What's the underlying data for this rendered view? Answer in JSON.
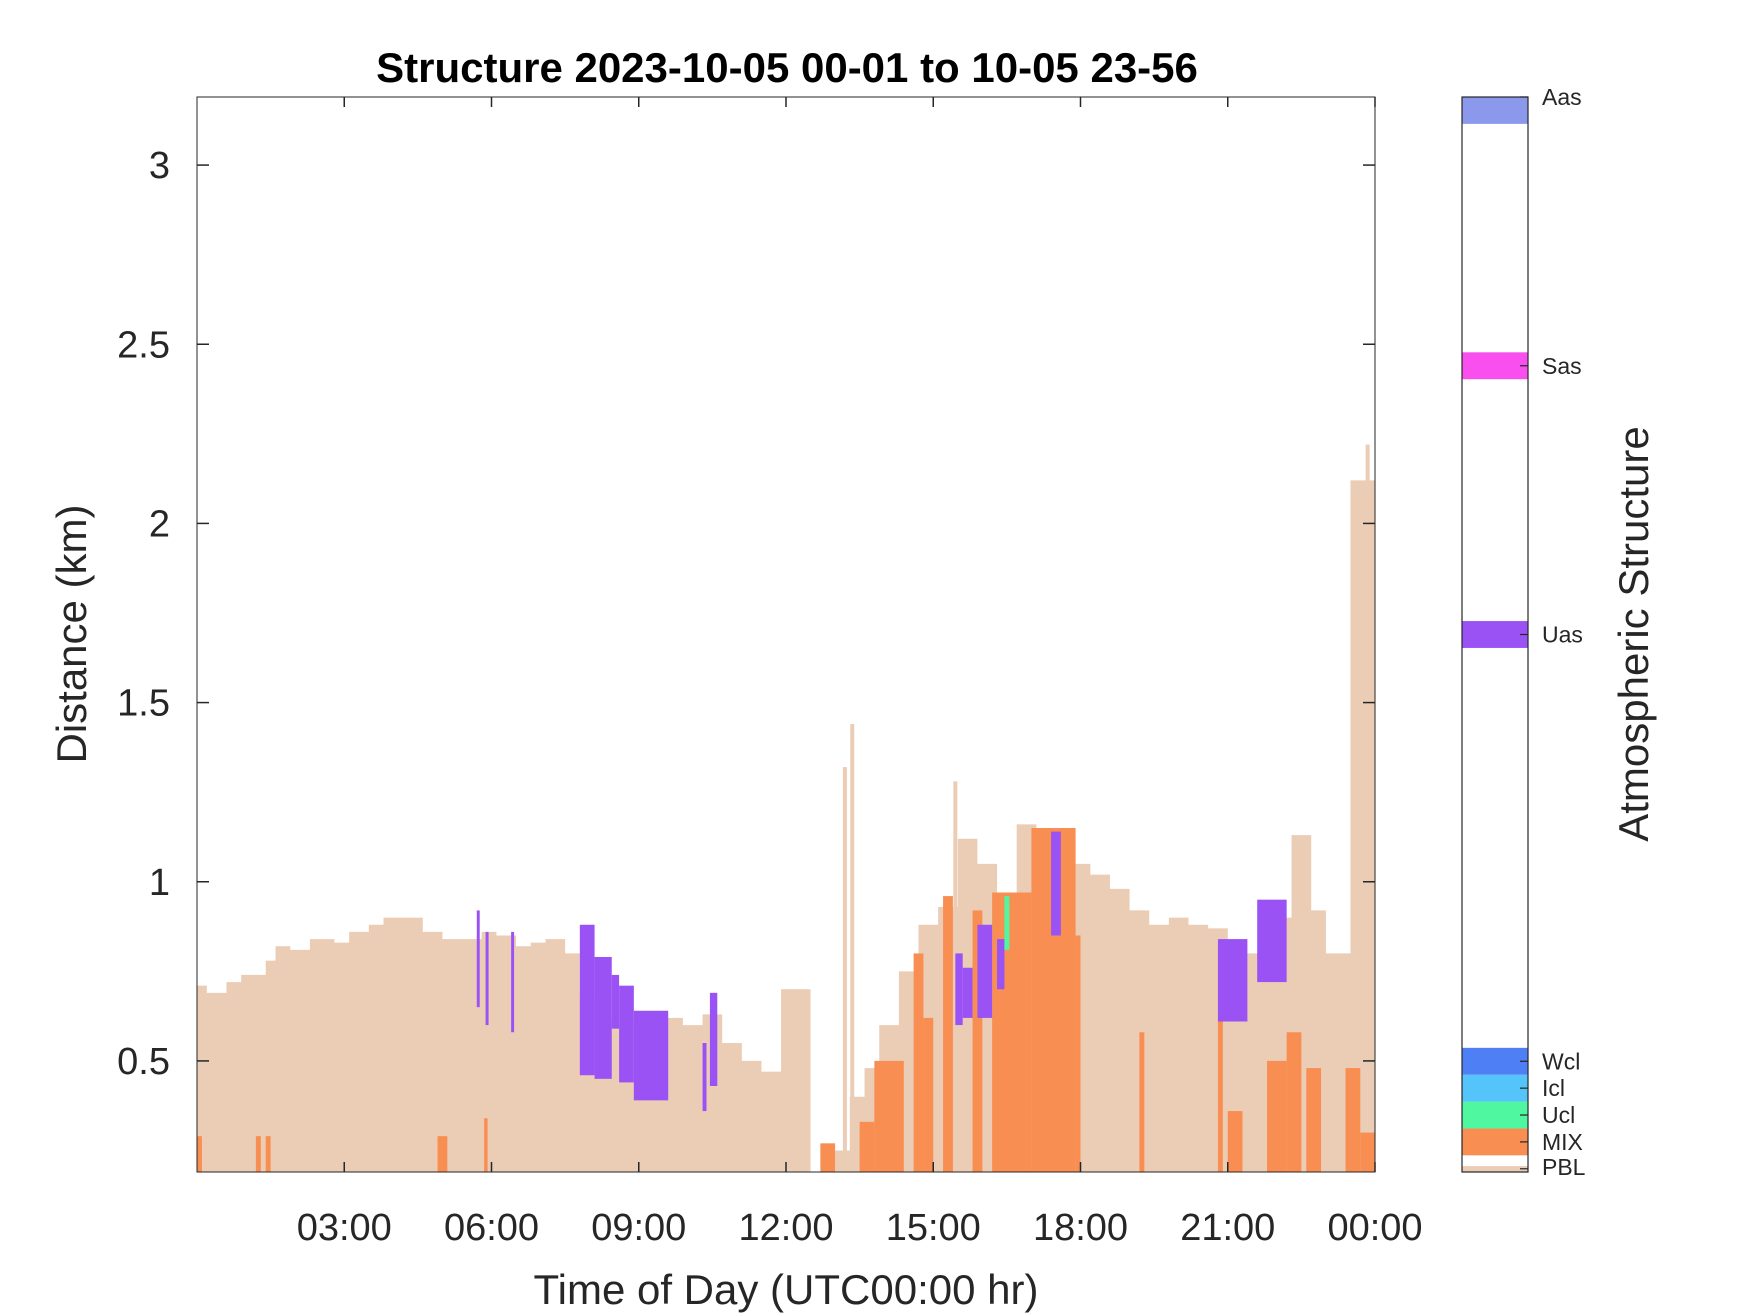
{
  "chart_data": {
    "type": "heatmap",
    "title": "Structure 2023-10-05 00-01 to 10-05 23-56",
    "xlabel": "Time of Day (UTC00:00 hr)",
    "ylabel": "Distance (km)",
    "xlim": [
      0,
      24
    ],
    "ylim": [
      0.19,
      3.19
    ],
    "x_ticks": [
      {
        "value": 3,
        "label": "03:00"
      },
      {
        "value": 6,
        "label": "06:00"
      },
      {
        "value": 9,
        "label": "09:00"
      },
      {
        "value": 12,
        "label": "12:00"
      },
      {
        "value": 15,
        "label": "15:00"
      },
      {
        "value": 18,
        "label": "18:00"
      },
      {
        "value": 21,
        "label": "21:00"
      },
      {
        "value": 24,
        "label": "00:00"
      }
    ],
    "y_ticks": [
      {
        "value": 0.5,
        "label": "0.5"
      },
      {
        "value": 1,
        "label": "1"
      },
      {
        "value": 1.5,
        "label": "1.5"
      },
      {
        "value": 2,
        "label": "2"
      },
      {
        "value": 2.5,
        "label": "2.5"
      },
      {
        "value": 3,
        "label": "3"
      }
    ],
    "colorbar": {
      "label": "Atmospheric Structure",
      "categories": [
        {
          "code": "PBL",
          "color": "#EBCCB5"
        },
        {
          "code": "MIX",
          "color": "#F88E52"
        },
        {
          "code": "Ucl",
          "color": "#4FF7A1"
        },
        {
          "code": "Icl",
          "color": "#55C4FA"
        },
        {
          "code": "Wcl",
          "color": "#4F7FF5"
        },
        {
          "code": "Uas",
          "color": "#9B52F5"
        },
        {
          "code": "Sas",
          "color": "#F84FEE"
        },
        {
          "code": "Aas",
          "color": "#8C98EB"
        }
      ]
    },
    "pbl_top_km": [
      [
        0.0,
        0.71
      ],
      [
        0.2,
        0.69
      ],
      [
        0.6,
        0.72
      ],
      [
        0.9,
        0.74
      ],
      [
        1.4,
        0.78
      ],
      [
        1.6,
        0.82
      ],
      [
        1.9,
        0.81
      ],
      [
        2.3,
        0.84
      ],
      [
        2.8,
        0.83
      ],
      [
        3.1,
        0.86
      ],
      [
        3.5,
        0.88
      ],
      [
        3.8,
        0.9
      ],
      [
        4.2,
        0.9
      ],
      [
        4.6,
        0.86
      ],
      [
        5.0,
        0.84
      ],
      [
        5.5,
        0.84
      ],
      [
        5.8,
        0.86
      ],
      [
        6.1,
        0.85
      ],
      [
        6.5,
        0.82
      ],
      [
        6.8,
        0.83
      ],
      [
        7.1,
        0.84
      ],
      [
        7.5,
        0.8
      ],
      [
        7.8,
        0.68
      ],
      [
        8.2,
        0.62
      ],
      [
        8.5,
        0.6
      ],
      [
        8.8,
        0.62
      ],
      [
        9.1,
        0.63
      ],
      [
        9.5,
        0.62
      ],
      [
        9.9,
        0.6
      ],
      [
        10.3,
        0.63
      ],
      [
        10.7,
        0.55
      ],
      [
        11.1,
        0.5
      ],
      [
        11.5,
        0.47
      ],
      [
        11.9,
        0.7
      ],
      [
        12.2,
        0.7
      ],
      [
        12.5,
        0.7
      ],
      [
        12.6,
        0.19
      ],
      [
        13.0,
        0.25
      ],
      [
        13.3,
        0.4
      ],
      [
        13.6,
        0.48
      ],
      [
        13.9,
        0.6
      ],
      [
        14.3,
        0.75
      ],
      [
        14.7,
        0.88
      ],
      [
        15.1,
        0.93
      ],
      [
        15.5,
        1.12
      ],
      [
        15.9,
        1.05
      ],
      [
        16.3,
        0.95
      ],
      [
        16.7,
        1.16
      ],
      [
        17.1,
        1.15
      ],
      [
        17.5,
        1.12
      ],
      [
        17.9,
        1.05
      ],
      [
        18.2,
        1.02
      ],
      [
        18.6,
        0.98
      ],
      [
        19.0,
        0.92
      ],
      [
        19.4,
        0.88
      ],
      [
        19.8,
        0.9
      ],
      [
        20.2,
        0.88
      ],
      [
        20.6,
        0.87
      ],
      [
        21.0,
        0.82
      ],
      [
        21.4,
        0.8
      ],
      [
        21.8,
        0.86
      ],
      [
        22.0,
        0.9
      ],
      [
        22.3,
        1.13
      ],
      [
        22.7,
        0.92
      ],
      [
        23.0,
        0.8
      ],
      [
        23.3,
        0.8
      ],
      [
        23.5,
        2.12
      ],
      [
        23.8,
        2.12
      ],
      [
        24.0,
        2.2
      ]
    ],
    "pbl_spikes": [
      {
        "x": 13.2,
        "top": 1.32
      },
      {
        "x": 13.35,
        "top": 1.44
      },
      {
        "x": 15.45,
        "top": 1.28
      },
      {
        "x": 23.85,
        "top": 2.22
      }
    ],
    "pbl_gaps": [
      {
        "x0": 12.5,
        "x1": 12.62,
        "top": 0.19
      }
    ],
    "mix_regions": [
      {
        "x0": 0.0,
        "x1": 0.1,
        "top": 0.29
      },
      {
        "x0": 1.2,
        "x1": 1.3,
        "top": 0.29
      },
      {
        "x0": 1.4,
        "x1": 1.5,
        "top": 0.29
      },
      {
        "x0": 4.9,
        "x1": 5.1,
        "top": 0.29
      },
      {
        "x0": 5.85,
        "x1": 5.92,
        "top": 0.34
      },
      {
        "x0": 12.7,
        "x1": 13.0,
        "top": 0.27
      },
      {
        "x0": 13.5,
        "x1": 13.8,
        "top": 0.33
      },
      {
        "x0": 13.8,
        "x1": 14.4,
        "top": 0.5
      },
      {
        "x0": 14.6,
        "x1": 14.8,
        "top": 0.8
      },
      {
        "x0": 14.8,
        "x1": 15.0,
        "top": 0.62
      },
      {
        "x0": 15.2,
        "x1": 15.4,
        "top": 0.96
      },
      {
        "x0": 15.8,
        "x1": 16.0,
        "top": 0.92
      },
      {
        "x0": 16.2,
        "x1": 17.0,
        "top": 0.97
      },
      {
        "x0": 17.0,
        "x1": 17.9,
        "top": 1.15
      },
      {
        "x0": 17.9,
        "x1": 18.0,
        "top": 0.85
      },
      {
        "x0": 19.2,
        "x1": 19.3,
        "top": 0.58
      },
      {
        "x0": 20.8,
        "x1": 20.9,
        "top": 0.62
      },
      {
        "x0": 21.0,
        "x1": 21.3,
        "top": 0.36
      },
      {
        "x0": 21.8,
        "x1": 22.2,
        "top": 0.5
      },
      {
        "x0": 22.2,
        "x1": 22.5,
        "top": 0.58
      },
      {
        "x0": 22.6,
        "x1": 22.9,
        "top": 0.48
      },
      {
        "x0": 23.4,
        "x1": 23.7,
        "top": 0.48
      },
      {
        "x0": 23.7,
        "x1": 24.0,
        "top": 0.3
      }
    ],
    "ucl_regions": [
      {
        "x0": 16.45,
        "x1": 16.55,
        "bottom": 0.81,
        "top": 0.96
      }
    ],
    "uas_regions": [
      {
        "x0": 5.7,
        "x1": 5.76,
        "bottom": 0.65,
        "top": 0.92
      },
      {
        "x0": 5.88,
        "x1": 5.94,
        "bottom": 0.6,
        "top": 0.86
      },
      {
        "x0": 6.4,
        "x1": 6.46,
        "bottom": 0.58,
        "top": 0.86
      },
      {
        "x0": 7.8,
        "x1": 8.1,
        "bottom": 0.46,
        "top": 0.88
      },
      {
        "x0": 8.1,
        "x1": 8.45,
        "bottom": 0.45,
        "top": 0.79
      },
      {
        "x0": 8.45,
        "x1": 8.6,
        "bottom": 0.59,
        "top": 0.74
      },
      {
        "x0": 8.6,
        "x1": 8.9,
        "bottom": 0.44,
        "top": 0.71
      },
      {
        "x0": 8.9,
        "x1": 9.6,
        "bottom": 0.39,
        "top": 0.64
      },
      {
        "x0": 10.3,
        "x1": 10.38,
        "bottom": 0.36,
        "top": 0.55
      },
      {
        "x0": 10.45,
        "x1": 10.6,
        "bottom": 0.43,
        "top": 0.69
      },
      {
        "x0": 15.45,
        "x1": 15.6,
        "bottom": 0.6,
        "top": 0.8
      },
      {
        "x0": 15.6,
        "x1": 15.8,
        "bottom": 0.62,
        "top": 0.76
      },
      {
        "x0": 15.9,
        "x1": 16.2,
        "bottom": 0.62,
        "top": 0.88
      },
      {
        "x0": 16.3,
        "x1": 16.45,
        "bottom": 0.7,
        "top": 0.84
      },
      {
        "x0": 17.4,
        "x1": 17.6,
        "bottom": 0.85,
        "top": 1.14
      },
      {
        "x0": 20.8,
        "x1": 21.4,
        "bottom": 0.61,
        "top": 0.84
      },
      {
        "x0": 21.6,
        "x1": 22.2,
        "bottom": 0.72,
        "top": 0.95
      }
    ]
  }
}
